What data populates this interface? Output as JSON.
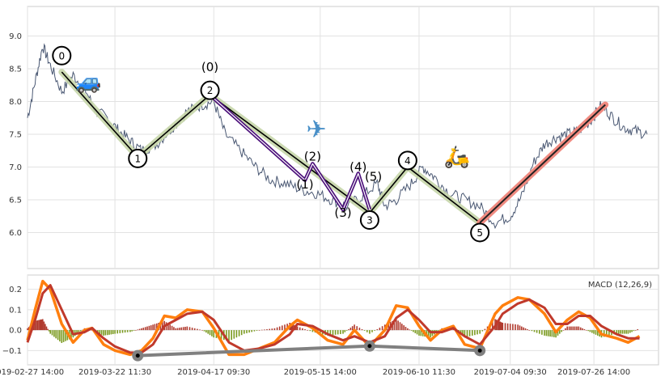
{
  "chart_data": [
    {
      "type": "line",
      "panel": "price",
      "grid": true,
      "ylim": [
        5.45,
        9.45
      ],
      "y_ticks": [
        "6.0",
        "6.5",
        "7.0",
        "7.5",
        "8.0",
        "8.5",
        "9.0"
      ],
      "price_series": [
        [
          "2019-02-27",
          7.75
        ],
        [
          "2019-03-01",
          8.3
        ],
        [
          "2019-03-03",
          8.85
        ],
        [
          "2019-03-05",
          8.55
        ],
        [
          "2019-03-08",
          8.15
        ],
        [
          "2019-03-11",
          8.4
        ],
        [
          "2019-03-14",
          8.2
        ],
        [
          "2019-03-17",
          7.85
        ],
        [
          "2019-03-20",
          7.75
        ],
        [
          "2019-03-23",
          7.55
        ],
        [
          "2019-03-26",
          7.4
        ],
        [
          "2019-03-29",
          7.25
        ],
        [
          "2019-04-02",
          7.35
        ],
        [
          "2019-04-06",
          7.6
        ],
        [
          "2019-04-10",
          7.85
        ],
        [
          "2019-04-14",
          7.95
        ],
        [
          "2019-04-17",
          8.0
        ],
        [
          "2019-04-20",
          7.5
        ],
        [
          "2019-04-24",
          7.25
        ],
        [
          "2019-04-28",
          7.0
        ],
        [
          "2019-05-02",
          6.8
        ],
        [
          "2019-05-06",
          6.75
        ],
        [
          "2019-05-10",
          6.65
        ],
        [
          "2019-05-14",
          6.6
        ],
        [
          "2019-05-18",
          6.5
        ],
        [
          "2019-05-22",
          6.4
        ],
        [
          "2019-05-26",
          6.55
        ],
        [
          "2019-05-30",
          6.75
        ],
        [
          "2019-06-01",
          6.4
        ],
        [
          "2019-06-04",
          6.5
        ],
        [
          "2019-06-08",
          6.75
        ],
        [
          "2019-06-11",
          7.0
        ],
        [
          "2019-06-14",
          6.85
        ],
        [
          "2019-06-18",
          6.6
        ],
        [
          "2019-06-22",
          6.5
        ],
        [
          "2019-06-26",
          6.4
        ],
        [
          "2019-06-30",
          6.15
        ],
        [
          "2019-07-04",
          6.25
        ],
        [
          "2019-07-07",
          6.55
        ],
        [
          "2019-07-10",
          7.05
        ],
        [
          "2019-07-13",
          7.35
        ],
        [
          "2019-07-16",
          7.45
        ],
        [
          "2019-07-19",
          7.5
        ],
        [
          "2019-07-22",
          7.55
        ],
        [
          "2019-07-25",
          7.7
        ],
        [
          "2019-07-28",
          7.95
        ],
        [
          "2019-07-31",
          7.75
        ],
        [
          "2019-08-03",
          7.6
        ],
        [
          "2019-08-06",
          7.55
        ],
        [
          "2019-08-09",
          7.5
        ]
      ],
      "main_wave": [
        [
          "2019-03-08",
          8.45
        ],
        [
          "2019-03-28",
          7.15
        ],
        [
          "2019-04-16",
          8.1
        ],
        [
          "2019-05-28",
          6.3
        ],
        [
          "2019-06-07",
          7.0
        ],
        [
          "2019-06-26",
          6.15
        ]
      ],
      "sub_wave": [
        [
          "2019-04-16",
          8.1
        ],
        [
          "2019-05-11",
          6.8
        ],
        [
          "2019-05-13",
          7.05
        ],
        [
          "2019-05-21",
          6.35
        ],
        [
          "2019-05-25",
          6.9
        ],
        [
          "2019-05-28",
          6.35
        ]
      ],
      "trend_line": [
        [
          "2019-06-26",
          6.15
        ],
        [
          "2019-07-29",
          7.95
        ]
      ],
      "labels": [
        {
          "text": "0",
          "x": "2019-03-08",
          "y": 8.7,
          "circled": true
        },
        {
          "text": "1",
          "x": "2019-03-28",
          "y": 7.13,
          "circled": true
        },
        {
          "text": "2",
          "x": "2019-04-16",
          "y": 8.17,
          "circled": true
        },
        {
          "text": "3",
          "x": "2019-05-28",
          "y": 6.19,
          "circled": true
        },
        {
          "text": "4",
          "x": "2019-06-07",
          "y": 7.1,
          "circled": true
        },
        {
          "text": "5",
          "x": "2019-06-26",
          "y": 6.0,
          "circled": true
        },
        {
          "text": "(0)",
          "x": "2019-04-16",
          "y": 8.46,
          "circled": false
        },
        {
          "text": "(1)",
          "x": "2019-05-11",
          "y": 6.67,
          "circled": false
        },
        {
          "text": "(2)",
          "x": "2019-05-13",
          "y": 7.1,
          "circled": false
        },
        {
          "text": "(3)",
          "x": "2019-05-21",
          "y": 6.24,
          "circled": false
        },
        {
          "text": "(4)",
          "x": "2019-05-25",
          "y": 6.94,
          "circled": false
        },
        {
          "text": "(5)",
          "x": "2019-05-29",
          "y": 6.79,
          "circled": false
        }
      ],
      "icons": [
        {
          "name": "car-icon",
          "glyph": "🚙",
          "x": "2019-03-15",
          "y": 8.2
        },
        {
          "name": "airplane-icon",
          "glyph": "✈",
          "x": "2019-05-14",
          "y": 7.45
        },
        {
          "name": "scooter-icon",
          "glyph": "🛵",
          "x": "2019-06-20",
          "y": 7.05
        }
      ],
      "colors": {
        "price": "#4a5873",
        "main_wave": "#000000",
        "main_wave_glow": "#c7d6aa",
        "sub_wave": "#4b0f7a",
        "trend_line": "#222222",
        "trend_glow": "#f08a80"
      }
    },
    {
      "type": "line",
      "panel": "macd",
      "title": "MACD (12,26,9)",
      "grid": true,
      "ylim": [
        -0.17,
        0.27
      ],
      "y_ticks": [
        "−0.1",
        "0.0",
        "0.1",
        "0.2"
      ],
      "x_ticks": [
        "2019-02-27 14:00",
        "2019-03-22 11:30",
        "2019-04-17 09:30",
        "2019-05-15 14:00",
        "2019-06-10 11:30",
        "2019-07-04 09:30",
        "2019-07-26 14:00"
      ],
      "macd_series": [
        [
          "2019-02-27",
          -0.05
        ],
        [
          "2019-03-01",
          0.1
        ],
        [
          "2019-03-03",
          0.24
        ],
        [
          "2019-03-05",
          0.2
        ],
        [
          "2019-03-08",
          0.03
        ],
        [
          "2019-03-11",
          -0.06
        ],
        [
          "2019-03-14",
          0.0
        ],
        [
          "2019-03-16",
          0.01
        ],
        [
          "2019-03-19",
          -0.07
        ],
        [
          "2019-03-22",
          -0.1
        ],
        [
          "2019-03-26",
          -0.12
        ],
        [
          "2019-03-29",
          -0.1
        ],
        [
          "2019-04-01",
          -0.04
        ],
        [
          "2019-04-04",
          0.07
        ],
        [
          "2019-04-07",
          0.06
        ],
        [
          "2019-04-10",
          0.1
        ],
        [
          "2019-04-14",
          0.09
        ],
        [
          "2019-04-17",
          0.01
        ],
        [
          "2019-04-21",
          -0.12
        ],
        [
          "2019-04-25",
          -0.12
        ],
        [
          "2019-04-29",
          -0.09
        ],
        [
          "2019-05-03",
          -0.06
        ],
        [
          "2019-05-07",
          0.02
        ],
        [
          "2019-05-09",
          0.05
        ],
        [
          "2019-05-13",
          0.01
        ],
        [
          "2019-05-17",
          -0.05
        ],
        [
          "2019-05-21",
          -0.07
        ],
        [
          "2019-05-24",
          0.0
        ],
        [
          "2019-05-28",
          -0.08
        ],
        [
          "2019-06-01",
          0.0
        ],
        [
          "2019-06-04",
          0.12
        ],
        [
          "2019-06-07",
          0.11
        ],
        [
          "2019-06-10",
          0.02
        ],
        [
          "2019-06-13",
          -0.05
        ],
        [
          "2019-06-16",
          0.0
        ],
        [
          "2019-06-19",
          0.02
        ],
        [
          "2019-06-22",
          -0.07
        ],
        [
          "2019-06-26",
          -0.09
        ],
        [
          "2019-06-30",
          0.08
        ],
        [
          "2019-07-02",
          0.12
        ],
        [
          "2019-07-06",
          0.16
        ],
        [
          "2019-07-09",
          0.15
        ],
        [
          "2019-07-13",
          0.08
        ],
        [
          "2019-07-16",
          -0.01
        ],
        [
          "2019-07-19",
          0.05
        ],
        [
          "2019-07-22",
          0.09
        ],
        [
          "2019-07-25",
          0.06
        ],
        [
          "2019-07-28",
          -0.02
        ],
        [
          "2019-08-01",
          -0.04
        ],
        [
          "2019-08-04",
          -0.06
        ],
        [
          "2019-08-07",
          -0.03
        ]
      ],
      "signal_series": [
        [
          "2019-02-27",
          -0.06
        ],
        [
          "2019-03-01",
          0.05
        ],
        [
          "2019-03-03",
          0.18
        ],
        [
          "2019-03-05",
          0.22
        ],
        [
          "2019-03-08",
          0.1
        ],
        [
          "2019-03-11",
          -0.02
        ],
        [
          "2019-03-14",
          -0.01
        ],
        [
          "2019-03-16",
          0.01
        ],
        [
          "2019-03-19",
          -0.04
        ],
        [
          "2019-03-22",
          -0.08
        ],
        [
          "2019-03-26",
          -0.11
        ],
        [
          "2019-03-29",
          -0.11
        ],
        [
          "2019-04-01",
          -0.07
        ],
        [
          "2019-04-04",
          0.02
        ],
        [
          "2019-04-07",
          0.05
        ],
        [
          "2019-04-10",
          0.08
        ],
        [
          "2019-04-14",
          0.09
        ],
        [
          "2019-04-17",
          0.05
        ],
        [
          "2019-04-21",
          -0.06
        ],
        [
          "2019-04-25",
          -0.1
        ],
        [
          "2019-04-29",
          -0.09
        ],
        [
          "2019-05-03",
          -0.07
        ],
        [
          "2019-05-07",
          -0.02
        ],
        [
          "2019-05-09",
          0.03
        ],
        [
          "2019-05-13",
          0.02
        ],
        [
          "2019-05-17",
          -0.02
        ],
        [
          "2019-05-21",
          -0.05
        ],
        [
          "2019-05-24",
          -0.03
        ],
        [
          "2019-05-28",
          -0.06
        ],
        [
          "2019-06-01",
          -0.03
        ],
        [
          "2019-06-04",
          0.06
        ],
        [
          "2019-06-07",
          0.1
        ],
        [
          "2019-06-10",
          0.05
        ],
        [
          "2019-06-13",
          -0.01
        ],
        [
          "2019-06-16",
          -0.01
        ],
        [
          "2019-06-19",
          0.01
        ],
        [
          "2019-06-22",
          -0.03
        ],
        [
          "2019-06-26",
          -0.07
        ],
        [
          "2019-06-30",
          0.02
        ],
        [
          "2019-07-02",
          0.08
        ],
        [
          "2019-07-06",
          0.13
        ],
        [
          "2019-07-09",
          0.15
        ],
        [
          "2019-07-13",
          0.11
        ],
        [
          "2019-07-16",
          0.03
        ],
        [
          "2019-07-19",
          0.03
        ],
        [
          "2019-07-22",
          0.07
        ],
        [
          "2019-07-25",
          0.07
        ],
        [
          "2019-07-28",
          0.02
        ],
        [
          "2019-08-01",
          -0.02
        ],
        [
          "2019-08-04",
          -0.04
        ],
        [
          "2019-08-07",
          -0.04
        ]
      ],
      "divergence_line": [
        [
          "2019-03-28",
          -0.125
        ],
        [
          "2019-05-28",
          -0.078
        ],
        [
          "2019-06-26",
          -0.1
        ]
      ],
      "colors": {
        "macd": "#ff7f0e",
        "signal": "#c0392b",
        "hist_positive": "#b03a2e",
        "hist_negative": "#7a9a1f",
        "divergence": "#808080"
      }
    }
  ]
}
